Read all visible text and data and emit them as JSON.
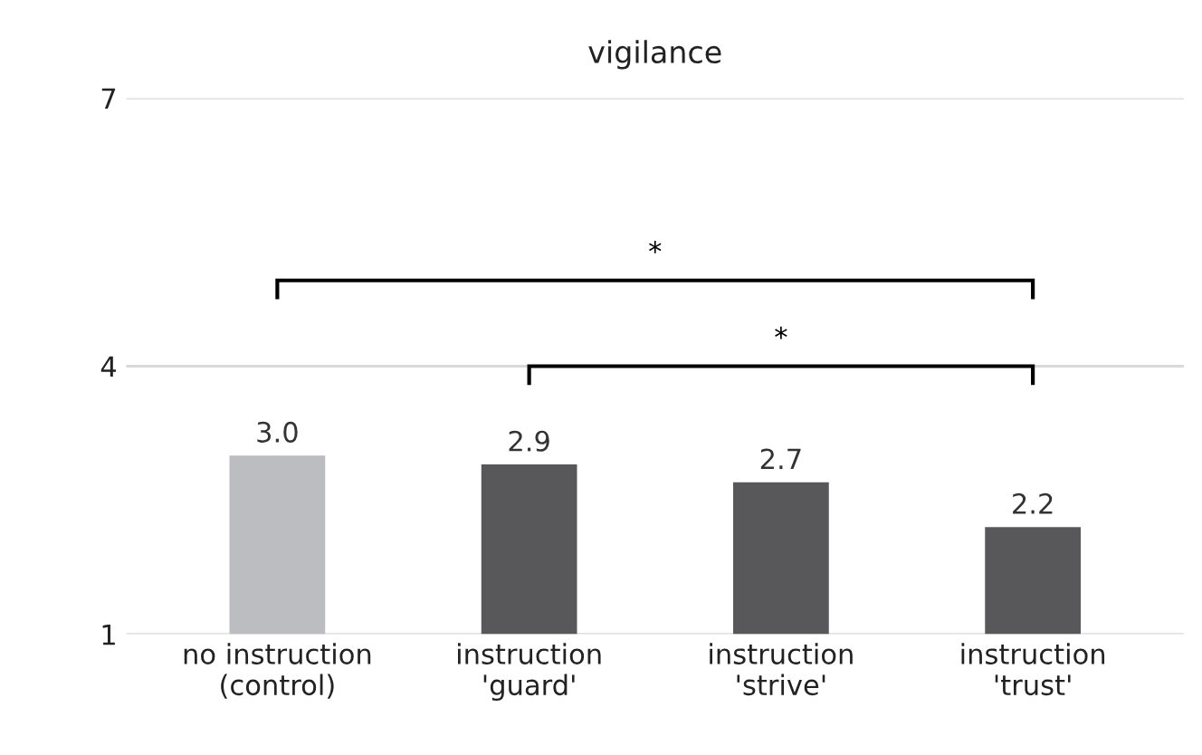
{
  "chart_data": {
    "type": "bar",
    "title": "vigilance",
    "categories": [
      "no instruction\n(control)",
      "instruction\n'guard'",
      "instruction\n'strive'",
      "instruction\n'trust'"
    ],
    "values": [
      3.0,
      2.9,
      2.7,
      2.2
    ],
    "colors": [
      "#bcbdc1",
      "#58585a",
      "#58585a",
      "#58585a"
    ],
    "value_labels": [
      "3.0",
      "2.9",
      "2.7",
      "2.2"
    ],
    "ylim": [
      1,
      7
    ],
    "yticks": [
      1,
      4,
      7
    ],
    "grid": "y",
    "annotations": [
      "*",
      "*"
    ]
  }
}
